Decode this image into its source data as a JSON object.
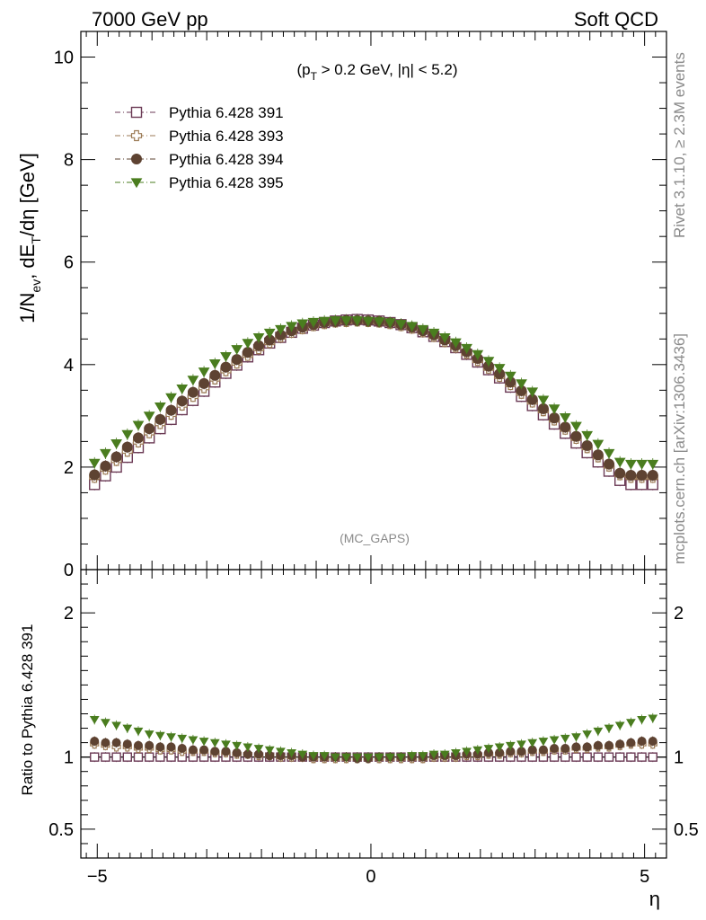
{
  "header": {
    "left": "7000 GeV pp",
    "right": "Soft QCD"
  },
  "side": {
    "rivet": "Rivet 3.1.10, ≥ 2.3M events",
    "mcplots": "mcplots.cern.ch [arXiv:1306.3436]"
  },
  "cut_label": {
    "open": "(p",
    "sub": "T",
    "rest": " > 0.2 GeV, |η| < 5.2)"
  },
  "watermark": "(MC_GAPS)",
  "colors": {
    "p391": "#6b3a55",
    "p393": "#9b7a55",
    "p394": "#5e4332",
    "p395": "#4a7d1f"
  },
  "chart_data": [
    {
      "type": "scatter",
      "panel": "main",
      "ylabel": "1/N_ev, dE_T/dη [GeV]",
      "ylim": [
        0,
        10.5
      ],
      "xlim": [
        -5.3,
        5.4
      ],
      "yticks": [
        0,
        2,
        4,
        6,
        8,
        10
      ],
      "legend_position": "top-left",
      "x": [
        -5.05,
        -4.85,
        -4.65,
        -4.45,
        -4.25,
        -4.05,
        -3.85,
        -3.65,
        -3.45,
        -3.25,
        -3.05,
        -2.85,
        -2.65,
        -2.45,
        -2.25,
        -2.05,
        -1.85,
        -1.65,
        -1.45,
        -1.25,
        -1.05,
        -0.85,
        -0.65,
        -0.45,
        -0.25,
        -0.05,
        0.15,
        0.35,
        0.55,
        0.75,
        0.95,
        1.15,
        1.35,
        1.55,
        1.75,
        1.95,
        2.15,
        2.35,
        2.55,
        2.75,
        2.95,
        3.15,
        3.35,
        3.55,
        3.75,
        3.95,
        4.15,
        4.35,
        4.55,
        4.75,
        4.95,
        5.15
      ],
      "series": [
        {
          "name": "Pythia 6.428 391",
          "marker": "open-square",
          "color": "#6b3a55",
          "values": [
            1.66,
            1.83,
            2.0,
            2.19,
            2.38,
            2.57,
            2.75,
            2.93,
            3.12,
            3.3,
            3.48,
            3.66,
            3.83,
            3.99,
            4.15,
            4.29,
            4.42,
            4.53,
            4.63,
            4.71,
            4.77,
            4.82,
            4.85,
            4.87,
            4.88,
            4.87,
            4.85,
            4.82,
            4.78,
            4.72,
            4.64,
            4.55,
            4.45,
            4.33,
            4.2,
            4.05,
            3.9,
            3.74,
            3.56,
            3.38,
            3.2,
            3.02,
            2.84,
            2.66,
            2.47,
            2.28,
            2.1,
            1.92,
            1.74,
            1.66,
            1.66,
            1.66
          ]
        },
        {
          "name": "Pythia 6.428 393",
          "marker": "open-cross",
          "color": "#9b7a55",
          "values": [
            1.8,
            1.96,
            2.13,
            2.31,
            2.49,
            2.67,
            2.85,
            3.03,
            3.21,
            3.38,
            3.55,
            3.72,
            3.88,
            4.03,
            4.18,
            4.31,
            4.43,
            4.54,
            4.63,
            4.7,
            4.76,
            4.8,
            4.83,
            4.84,
            4.85,
            4.84,
            4.83,
            4.8,
            4.76,
            4.71,
            4.64,
            4.55,
            4.45,
            4.34,
            4.22,
            4.08,
            3.93,
            3.77,
            3.61,
            3.44,
            3.27,
            3.1,
            2.92,
            2.74,
            2.56,
            2.38,
            2.2,
            2.02,
            1.85,
            1.8,
            1.8,
            1.8
          ]
        },
        {
          "name": "Pythia 6.428 394",
          "marker": "filled-circle",
          "color": "#5e4332",
          "values": [
            1.85,
            2.02,
            2.2,
            2.39,
            2.57,
            2.75,
            2.93,
            3.11,
            3.29,
            3.46,
            3.63,
            3.79,
            3.95,
            4.1,
            4.24,
            4.37,
            4.48,
            4.58,
            4.66,
            4.73,
            4.78,
            4.82,
            4.84,
            4.86,
            4.86,
            4.85,
            4.84,
            4.82,
            4.78,
            4.73,
            4.66,
            4.58,
            4.48,
            4.37,
            4.25,
            4.12,
            3.97,
            3.82,
            3.66,
            3.49,
            3.32,
            3.14,
            2.96,
            2.78,
            2.6,
            2.42,
            2.24,
            2.06,
            1.88,
            1.84,
            1.84,
            1.84
          ]
        },
        {
          "name": "Pythia 6.428 395",
          "marker": "filled-triangle-down",
          "color": "#4a7d1f",
          "values": [
            2.08,
            2.27,
            2.46,
            2.64,
            2.82,
            3.0,
            3.18,
            3.36,
            3.53,
            3.7,
            3.86,
            4.02,
            4.16,
            4.3,
            4.42,
            4.53,
            4.62,
            4.69,
            4.75,
            4.8,
            4.83,
            4.85,
            4.86,
            4.86,
            4.86,
            4.85,
            4.84,
            4.82,
            4.79,
            4.75,
            4.69,
            4.62,
            4.53,
            4.43,
            4.32,
            4.2,
            4.07,
            3.93,
            3.78,
            3.63,
            3.47,
            3.31,
            3.14,
            2.97,
            2.8,
            2.62,
            2.45,
            2.27,
            2.1,
            2.06,
            2.06,
            2.06
          ]
        }
      ]
    },
    {
      "type": "scatter",
      "panel": "ratio",
      "ylabel": "Ratio to Pythia 6.428 391",
      "xlabel": "η",
      "ylim": [
        0.3,
        2.3
      ],
      "xlim": [
        -5.3,
        5.4
      ],
      "yticks": [
        0.5,
        1,
        2
      ],
      "xticks": [
        -5,
        0,
        5
      ],
      "x": [
        -5.05,
        -4.85,
        -4.65,
        -4.45,
        -4.25,
        -4.05,
        -3.85,
        -3.65,
        -3.45,
        -3.25,
        -3.05,
        -2.85,
        -2.65,
        -2.45,
        -2.25,
        -2.05,
        -1.85,
        -1.65,
        -1.45,
        -1.25,
        -1.05,
        -0.85,
        -0.65,
        -0.45,
        -0.25,
        -0.05,
        0.15,
        0.35,
        0.55,
        0.75,
        0.95,
        1.15,
        1.35,
        1.55,
        1.75,
        1.95,
        2.15,
        2.35,
        2.55,
        2.75,
        2.95,
        3.15,
        3.35,
        3.55,
        3.75,
        3.95,
        4.15,
        4.35,
        4.55,
        4.75,
        4.95,
        5.15
      ],
      "series": [
        {
          "name": "Pythia 6.428 391",
          "marker": "open-square",
          "color": "#6b3a55",
          "values": [
            1,
            1,
            1,
            1,
            1,
            1,
            1,
            1,
            1,
            1,
            1,
            1,
            1,
            1,
            1,
            1,
            1,
            1,
            1,
            1,
            1,
            1,
            1,
            1,
            1,
            1,
            1,
            1,
            1,
            1,
            1,
            1,
            1,
            1,
            1,
            1,
            1,
            1,
            1,
            1,
            1,
            1,
            1,
            1,
            1,
            1,
            1,
            1,
            1,
            1,
            1,
            1
          ]
        },
        {
          "name": "Pythia 6.428 393",
          "marker": "open-cross",
          "color": "#9b7a55",
          "values": [
            1.09,
            1.08,
            1.07,
            1.07,
            1.06,
            1.06,
            1.05,
            1.05,
            1.04,
            1.04,
            1.04,
            1.03,
            1.03,
            1.02,
            1.02,
            1.01,
            1.01,
            1.0,
            1.0,
            1.0,
            0.99,
            0.99,
            0.99,
            0.99,
            0.99,
            0.99,
            0.99,
            0.99,
            0.99,
            0.99,
            0.99,
            1.0,
            1.0,
            1.0,
            1.01,
            1.01,
            1.02,
            1.02,
            1.03,
            1.03,
            1.04,
            1.04,
            1.05,
            1.05,
            1.06,
            1.06,
            1.07,
            1.07,
            1.08,
            1.09,
            1.09,
            1.09
          ]
        },
        {
          "name": "Pythia 6.428 394",
          "marker": "filled-circle",
          "color": "#5e4332",
          "values": [
            1.11,
            1.1,
            1.1,
            1.09,
            1.08,
            1.08,
            1.07,
            1.07,
            1.06,
            1.05,
            1.05,
            1.04,
            1.04,
            1.03,
            1.02,
            1.02,
            1.01,
            1.01,
            1.01,
            1.0,
            1.0,
            1.0,
            1.0,
            1.0,
            0.99,
            0.99,
            1.0,
            1.0,
            1.0,
            1.0,
            1.0,
            1.01,
            1.01,
            1.01,
            1.02,
            1.02,
            1.03,
            1.03,
            1.04,
            1.04,
            1.05,
            1.05,
            1.06,
            1.06,
            1.07,
            1.07,
            1.08,
            1.08,
            1.09,
            1.1,
            1.11,
            1.11
          ]
        },
        {
          "name": "Pythia 6.428 395",
          "marker": "filled-triangle-down",
          "color": "#4a7d1f",
          "values": [
            1.26,
            1.24,
            1.22,
            1.2,
            1.18,
            1.16,
            1.15,
            1.14,
            1.13,
            1.12,
            1.11,
            1.1,
            1.09,
            1.08,
            1.07,
            1.06,
            1.05,
            1.04,
            1.03,
            1.02,
            1.01,
            1.01,
            1.0,
            1.0,
            1.0,
            1.0,
            1.0,
            1.0,
            1.0,
            1.01,
            1.01,
            1.02,
            1.02,
            1.03,
            1.04,
            1.05,
            1.06,
            1.07,
            1.08,
            1.09,
            1.1,
            1.11,
            1.12,
            1.13,
            1.14,
            1.16,
            1.18,
            1.2,
            1.22,
            1.24,
            1.26,
            1.27
          ]
        }
      ]
    }
  ]
}
